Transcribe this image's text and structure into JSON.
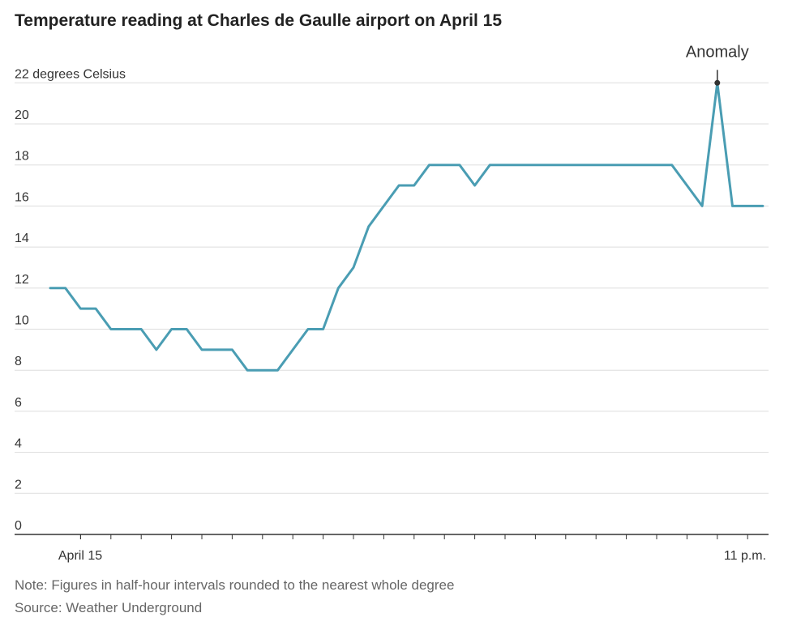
{
  "chart_data": {
    "type": "line",
    "title": "Temperature reading at Charles de Gaulle airport on April 15",
    "ylabel": "22 degrees Celsius",
    "ylim": [
      0,
      22
    ],
    "yticks": [
      0,
      2,
      4,
      6,
      8,
      10,
      12,
      14,
      16,
      18,
      20
    ],
    "x_tick_labels": [
      "April 15",
      "11 p.m."
    ],
    "x": [
      "00:00",
      "00:30",
      "01:00",
      "01:30",
      "02:00",
      "02:30",
      "03:00",
      "03:30",
      "04:00",
      "04:30",
      "05:00",
      "05:30",
      "06:00",
      "06:30",
      "07:00",
      "07:30",
      "08:00",
      "08:30",
      "09:00",
      "09:30",
      "10:00",
      "10:30",
      "11:00",
      "11:30",
      "12:00",
      "12:30",
      "13:00",
      "13:30",
      "14:00",
      "14:30",
      "15:00",
      "15:30",
      "16:00",
      "16:30",
      "17:00",
      "17:30",
      "18:00",
      "18:30",
      "19:00",
      "19:30",
      "20:00",
      "20:30",
      "21:00",
      "21:30",
      "22:00",
      "22:30",
      "23:00",
      "23:30"
    ],
    "series": [
      {
        "values": [
          12,
          12,
          11,
          11,
          10,
          10,
          10,
          9,
          10,
          10,
          9,
          9,
          9,
          8,
          8,
          8,
          9,
          10,
          10,
          12,
          13,
          15,
          16,
          17,
          17,
          18,
          18,
          18,
          17,
          18,
          18,
          18,
          18,
          18,
          18,
          18,
          18,
          18,
          18,
          18,
          18,
          18,
          17,
          16,
          22,
          16,
          16,
          16
        ],
        "color": "#4a9db3"
      }
    ],
    "annotations": [
      {
        "text": "Anomaly",
        "x": "22:00",
        "y": 22
      }
    ],
    "grid": true
  },
  "footer": {
    "note": "Note: Figures in half-hour intervals rounded to the nearest whole degree",
    "source": "Source: Weather Underground"
  }
}
